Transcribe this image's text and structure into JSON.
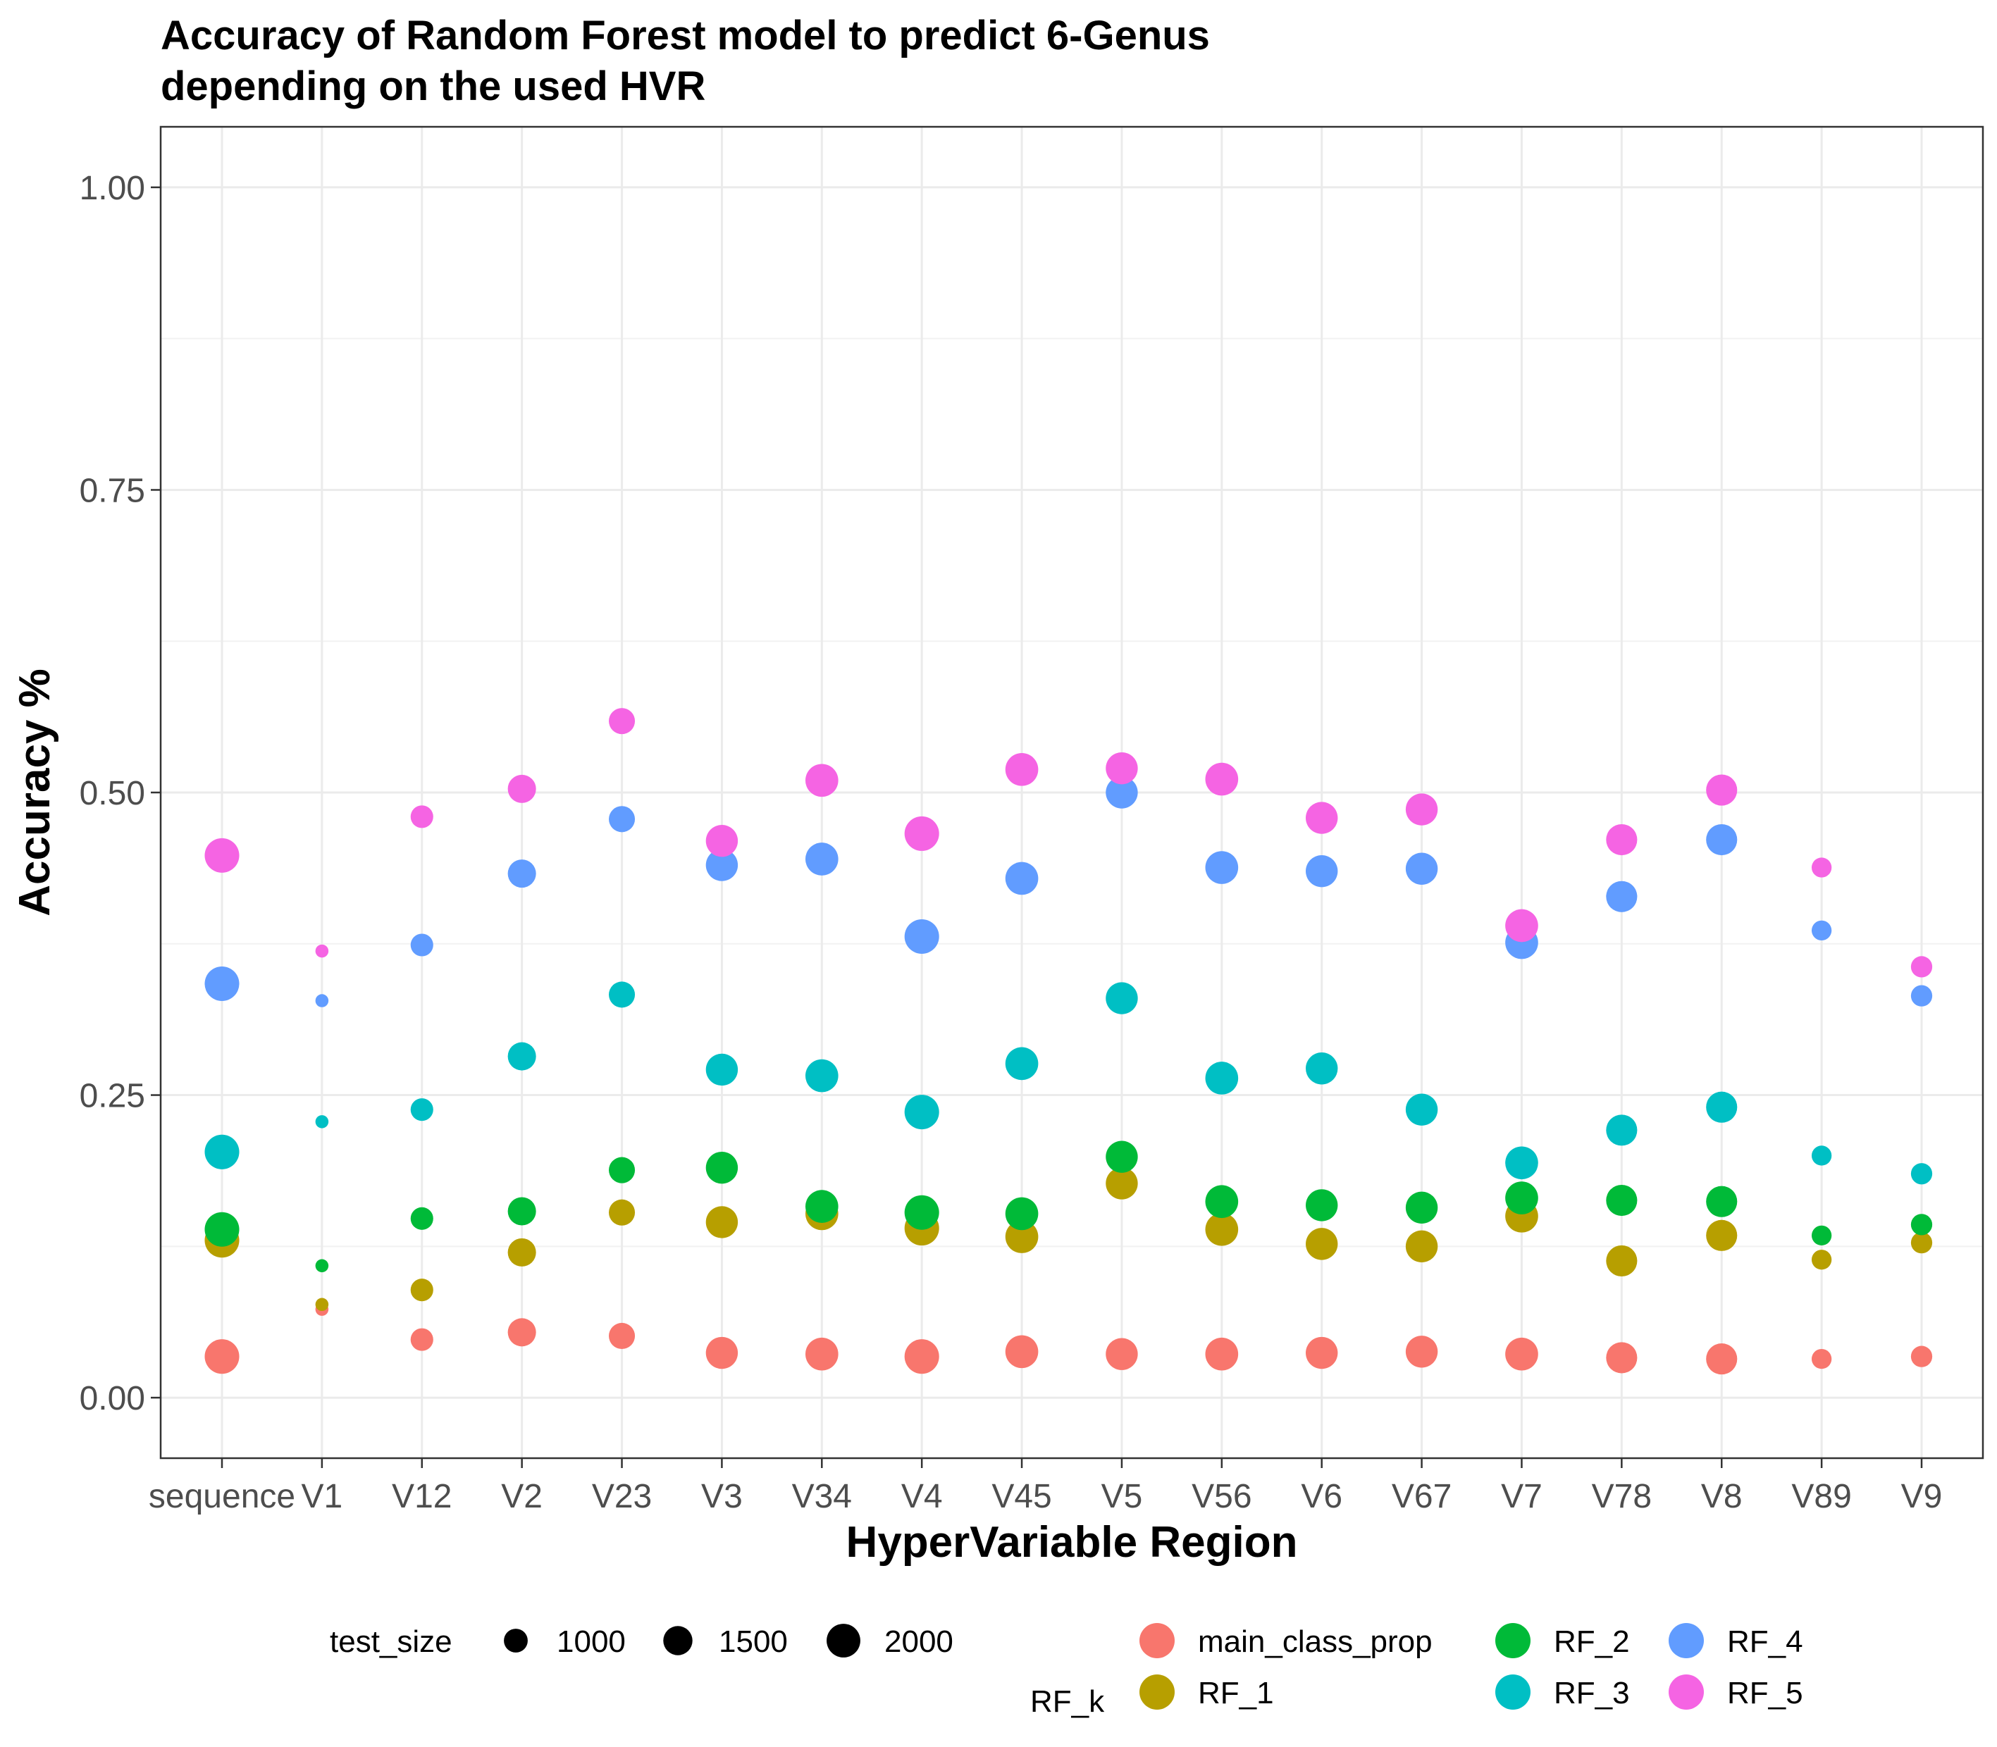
{
  "chart_data": {
    "type": "scatter",
    "title_lines": [
      "Accuracy of Random Forest model to predict 6-Genus",
      "depending on the used HVR"
    ],
    "xlabel": "HyperVariable Region",
    "ylabel": "Accuracy %",
    "categories": [
      "sequence",
      "V1",
      "V12",
      "V2",
      "V23",
      "V3",
      "V34",
      "V4",
      "V45",
      "V5",
      "V56",
      "V6",
      "V67",
      "V7",
      "V78",
      "V8",
      "V89",
      "V9"
    ],
    "ylim": [
      -0.05,
      1.05
    ],
    "y_ticks": [
      0.0,
      0.25,
      0.5,
      0.75,
      1.0
    ],
    "y_tick_labels": [
      "0.00",
      "0.25",
      "0.50",
      "0.75",
      "1.00"
    ],
    "grid": true,
    "legend_position": "bottom",
    "size_legend": {
      "title": "test_size",
      "values": [
        1000,
        1500,
        2000
      ],
      "labels": [
        "1000",
        "1500",
        "2000"
      ]
    },
    "color_legend": {
      "title": "RF_k",
      "entries": [
        {
          "name": "main_class_prop",
          "color": "#F8766D"
        },
        {
          "name": "RF_1",
          "color": "#B79F00"
        },
        {
          "name": "RF_2",
          "color": "#00BA38"
        },
        {
          "name": "RF_3",
          "color": "#00BFC4"
        },
        {
          "name": "RF_4",
          "color": "#619CFF"
        },
        {
          "name": "RF_5",
          "color": "#F564E3"
        }
      ]
    },
    "test_size": [
      2100,
      300,
      900,
      1400,
      1200,
      1800,
      1900,
      2100,
      1900,
      1800,
      1900,
      1800,
      1800,
      1900,
      1700,
      1700,
      700,
      800
    ],
    "series": [
      {
        "name": "main_class_prop",
        "color": "#F8766D",
        "values": [
          0.034,
          0.073,
          0.048,
          0.054,
          0.051,
          0.037,
          0.036,
          0.034,
          0.038,
          0.036,
          0.036,
          0.037,
          0.038,
          0.036,
          0.033,
          0.032,
          0.032,
          0.034
        ]
      },
      {
        "name": "RF_1",
        "color": "#B79F00",
        "values": [
          0.13,
          0.077,
          0.089,
          0.12,
          0.153,
          0.145,
          0.152,
          0.14,
          0.133,
          0.177,
          0.139,
          0.127,
          0.125,
          0.15,
          0.113,
          0.134,
          0.114,
          0.128
        ]
      },
      {
        "name": "RF_2",
        "color": "#00BA38",
        "values": [
          0.139,
          0.109,
          0.148,
          0.154,
          0.188,
          0.19,
          0.158,
          0.153,
          0.152,
          0.199,
          0.162,
          0.159,
          0.157,
          0.165,
          0.163,
          0.162,
          0.134,
          0.143
        ]
      },
      {
        "name": "RF_3",
        "color": "#00BFC4",
        "values": [
          0.203,
          0.228,
          0.238,
          0.282,
          0.333,
          0.271,
          0.266,
          0.236,
          0.276,
          0.33,
          0.264,
          0.272,
          0.238,
          0.194,
          0.221,
          0.24,
          0.2,
          0.185
        ]
      },
      {
        "name": "RF_4",
        "color": "#619CFF",
        "values": [
          0.342,
          0.328,
          0.374,
          0.433,
          0.478,
          0.44,
          0.445,
          0.381,
          0.429,
          0.5,
          0.438,
          0.435,
          0.437,
          0.376,
          0.414,
          0.461,
          0.386,
          0.332
        ]
      },
      {
        "name": "RF_5",
        "color": "#F564E3",
        "values": [
          0.448,
          0.369,
          0.48,
          0.503,
          0.559,
          0.46,
          0.51,
          0.466,
          0.519,
          0.52,
          0.511,
          0.479,
          0.486,
          0.39,
          0.461,
          0.502,
          0.438,
          0.356
        ]
      }
    ]
  }
}
